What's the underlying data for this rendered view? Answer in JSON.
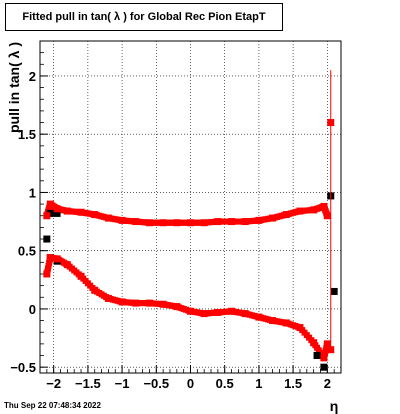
{
  "chart_data": {
    "type": "scatter",
    "title": "Fitted pull in tan( λ ) for Global Rec Pion EtapT",
    "xlabel": "η",
    "ylabel": "pull in tan( λ )",
    "xlim": [
      -2.2,
      2.2
    ],
    "ylim": [
      -0.55,
      2.3
    ],
    "grid": true,
    "x_ticks": [
      -2,
      -1.5,
      -1,
      -0.5,
      0,
      0.5,
      1,
      1.5,
      2
    ],
    "x_tick_labels": [
      "−2",
      "−1.5",
      "−1",
      "−0.5",
      "0",
      "0.5",
      "1",
      "1.5",
      "2"
    ],
    "y_ticks": [
      -0.5,
      0,
      0.5,
      1,
      1.5,
      2
    ],
    "y_tick_labels": [
      "−0.5",
      "0",
      "0.5",
      "1",
      "1.5",
      "2"
    ],
    "series": [
      {
        "color": "#000000",
        "marker": "square",
        "points": [
          {
            "x": -2.1,
            "y": 0.6
          },
          {
            "x": -2.05,
            "y": 0.82
          },
          {
            "x": -1.95,
            "y": 0.82
          },
          {
            "x": -2.05,
            "y": 0.44
          },
          {
            "x": -1.95,
            "y": 0.41
          },
          {
            "x": 1.85,
            "y": -0.4
          },
          {
            "x": 1.95,
            "y": -0.5
          },
          {
            "x": 2.05,
            "y": 0.97
          },
          {
            "x": 2.1,
            "y": 0.15
          }
        ]
      },
      {
        "color": "#ff0000",
        "marker": "square",
        "points": [
          {
            "x": -2.1,
            "y": 0.8
          },
          {
            "x": -2.05,
            "y": 0.9
          },
          {
            "x": -1.95,
            "y": 0.86
          },
          {
            "x": -1.8,
            "y": 0.84
          },
          {
            "x": -1.6,
            "y": 0.83
          },
          {
            "x": -1.4,
            "y": 0.81
          },
          {
            "x": -1.2,
            "y": 0.78
          },
          {
            "x": -1.0,
            "y": 0.76
          },
          {
            "x": -0.8,
            "y": 0.75
          },
          {
            "x": -0.6,
            "y": 0.74
          },
          {
            "x": -0.4,
            "y": 0.74
          },
          {
            "x": -0.2,
            "y": 0.74
          },
          {
            "x": 0.0,
            "y": 0.74
          },
          {
            "x": 0.2,
            "y": 0.74
          },
          {
            "x": 0.4,
            "y": 0.75
          },
          {
            "x": 0.6,
            "y": 0.75
          },
          {
            "x": 0.8,
            "y": 0.75
          },
          {
            "x": 1.0,
            "y": 0.76
          },
          {
            "x": 1.2,
            "y": 0.78
          },
          {
            "x": 1.4,
            "y": 0.81
          },
          {
            "x": 1.6,
            "y": 0.84
          },
          {
            "x": 1.8,
            "y": 0.85
          },
          {
            "x": 1.95,
            "y": 0.88
          },
          {
            "x": 2.0,
            "y": 0.8
          },
          {
            "x": 2.05,
            "y": 1.6
          },
          {
            "x": -2.1,
            "y": 0.3
          },
          {
            "x": -2.05,
            "y": 0.44
          },
          {
            "x": -1.95,
            "y": 0.43
          },
          {
            "x": -1.8,
            "y": 0.38
          },
          {
            "x": -1.6,
            "y": 0.28
          },
          {
            "x": -1.4,
            "y": 0.16
          },
          {
            "x": -1.2,
            "y": 0.09
          },
          {
            "x": -1.0,
            "y": 0.06
          },
          {
            "x": -0.8,
            "y": 0.05
          },
          {
            "x": -0.6,
            "y": 0.05
          },
          {
            "x": -0.4,
            "y": 0.04
          },
          {
            "x": -0.2,
            "y": 0.02
          },
          {
            "x": 0.0,
            "y": -0.02
          },
          {
            "x": 0.2,
            "y": -0.04
          },
          {
            "x": 0.4,
            "y": -0.03
          },
          {
            "x": 0.6,
            "y": -0.02
          },
          {
            "x": 0.8,
            "y": -0.04
          },
          {
            "x": 1.0,
            "y": -0.07
          },
          {
            "x": 1.2,
            "y": -0.1
          },
          {
            "x": 1.4,
            "y": -0.12
          },
          {
            "x": 1.6,
            "y": -0.16
          },
          {
            "x": 1.8,
            "y": -0.29
          },
          {
            "x": 1.95,
            "y": -0.42
          },
          {
            "x": 2.0,
            "y": -0.3
          },
          {
            "x": 2.05,
            "y": -0.35
          }
        ]
      }
    ]
  },
  "timestamp": "Thu Sep 22 07:48:34 2022"
}
